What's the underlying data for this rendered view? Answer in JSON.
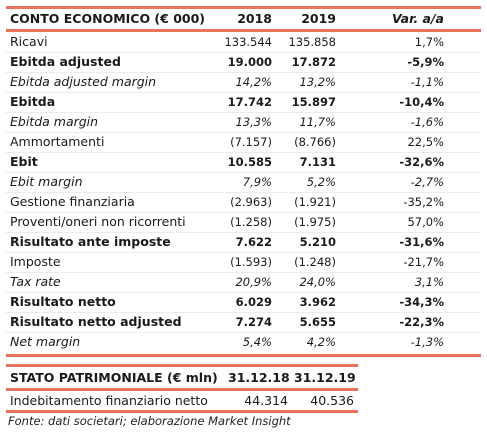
{
  "income_statement": {
    "title": "CONTO ECONOMICO (€ 000)",
    "col_2018": "2018",
    "col_2019": "2019",
    "col_var": "Var. a/a",
    "rows": [
      {
        "label": "Ricavi",
        "v2018": "133.544",
        "v2019": "135.858",
        "var": "1,7%",
        "style": "normal"
      },
      {
        "label": "Ebitda adjusted",
        "v2018": "19.000",
        "v2019": "17.872",
        "var": "-5,9%",
        "style": "bold"
      },
      {
        "label": "Ebitda adjusted margin",
        "v2018": "14,2%",
        "v2019": "13,2%",
        "var": "-1,1%",
        "style": "italic"
      },
      {
        "label": "Ebitda",
        "v2018": "17.742",
        "v2019": "15.897",
        "var": "-10,4%",
        "style": "bold"
      },
      {
        "label": "Ebitda margin",
        "v2018": "13,3%",
        "v2019": "11,7%",
        "var": "-1,6%",
        "style": "italic"
      },
      {
        "label": "Ammortamenti",
        "v2018": "(7.157)",
        "v2019": "(8.766)",
        "var": "22,5%",
        "style": "normal"
      },
      {
        "label": "Ebit",
        "v2018": "10.585",
        "v2019": "7.131",
        "var": "-32,6%",
        "style": "bold"
      },
      {
        "label": "Ebit margin",
        "v2018": "7,9%",
        "v2019": "5,2%",
        "var": "-2,7%",
        "style": "italic"
      },
      {
        "label": "Gestione finanziaria",
        "v2018": "(2.963)",
        "v2019": "(1.921)",
        "var": "-35,2%",
        "style": "normal"
      },
      {
        "label": "Proventi/oneri non ricorrenti",
        "v2018": "(1.258)",
        "v2019": "(1.975)",
        "var": "57,0%",
        "style": "normal"
      },
      {
        "label": "Risultato ante imposte",
        "v2018": "7.622",
        "v2019": "5.210",
        "var": "-31,6%",
        "style": "bold"
      },
      {
        "label": "Imposte",
        "v2018": "(1.593)",
        "v2019": "(1.248)",
        "var": "-21,7%",
        "style": "normal"
      },
      {
        "label": "Tax rate",
        "v2018": "20,9%",
        "v2019": "24,0%",
        "var": "3,1%",
        "style": "italic"
      },
      {
        "label": "Risultato netto",
        "v2018": "6.029",
        "v2019": "3.962",
        "var": "-34,3%",
        "style": "bold"
      },
      {
        "label": "Risultato netto adjusted",
        "v2018": "7.274",
        "v2019": "5.655",
        "var": "-22,3%",
        "style": "bold"
      },
      {
        "label": "Net margin",
        "v2018": "5,4%",
        "v2019": "4,2%",
        "var": "-1,3%",
        "style": "italic"
      }
    ]
  },
  "balance_sheet": {
    "title": "STATO PATRIMONIALE (€ mln)",
    "col_a": "31.12.18",
    "col_b": "31.12.19",
    "rows": [
      {
        "label": "Indebitamento finanziario netto",
        "a": "44.314",
        "b": "40.536"
      }
    ]
  },
  "source_note": "Fonte: dati societari; elaborazione Market Insight",
  "colors": {
    "accent_rule": "#e8735a",
    "row_separator": "#ececec"
  }
}
